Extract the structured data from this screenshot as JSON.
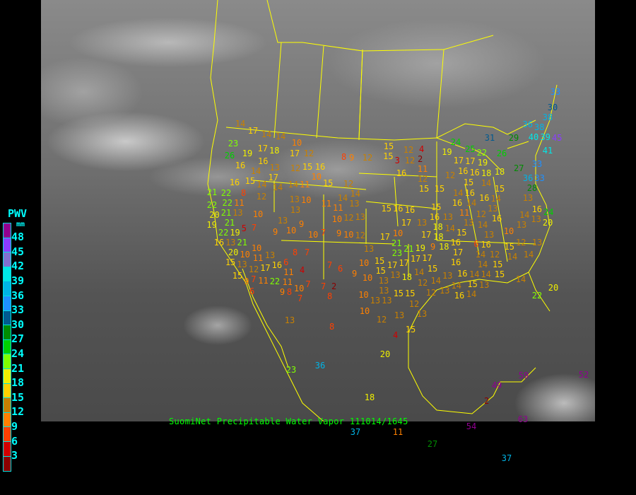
{
  "caption": "SuomiNet Precipitable Water Vapor 111014/1645",
  "legend": {
    "title": "PWV",
    "unit": "mm",
    "ticks": [
      "48",
      "45",
      "42",
      "39",
      "36",
      "33",
      "30",
      "27",
      "24",
      "21",
      "18",
      "15",
      "12",
      "9",
      "6",
      "3"
    ],
    "colors": [
      "#900090",
      "#8c3cff",
      "#8070d0",
      "#00e8e8",
      "#00b4e6",
      "#1e90ff",
      "#005a90",
      "#008c00",
      "#00d000",
      "#80ff00",
      "#f0f000",
      "#ffd200",
      "#c88000",
      "#ff8000",
      "#ff4000",
      "#d00000",
      "#8b0000"
    ]
  },
  "border_color": "#ffff00",
  "stations": [
    14,
    17,
    14,
    14,
    10,
    23,
    26,
    19,
    17,
    18,
    17,
    12,
    8,
    9,
    12,
    16,
    16,
    14,
    13,
    12,
    15,
    16,
    15,
    17,
    10,
    16,
    14,
    14,
    14,
    11,
    15,
    12,
    14,
    21,
    22,
    8,
    12,
    22,
    22,
    13,
    10,
    11,
    11,
    14,
    13,
    13,
    11,
    10,
    20,
    21,
    13,
    19,
    21,
    5,
    7,
    13,
    9,
    10,
    12,
    13,
    22,
    19,
    10,
    9,
    10,
    7,
    9,
    10,
    12,
    16,
    13,
    21,
    20,
    10,
    15,
    10,
    11,
    13,
    16,
    6,
    8,
    7,
    13,
    13,
    12,
    17,
    4,
    7,
    6,
    9,
    10,
    15,
    10,
    11,
    15,
    7,
    9,
    11,
    22,
    11,
    7,
    7,
    2,
    9,
    8,
    10,
    6,
    7,
    8,
    10,
    13,
    13,
    15,
    12,
    4,
    15,
    3,
    12,
    2,
    11,
    16,
    12,
    24,
    25,
    19,
    31,
    29,
    26,
    17,
    22,
    17,
    19,
    18,
    12,
    16,
    16,
    18,
    15,
    14,
    27,
    33,
    36,
    33,
    28,
    15,
    15,
    15,
    13,
    14,
    16,
    16,
    16,
    14,
    14,
    15,
    16,
    16,
    15,
    11,
    12,
    13,
    16,
    16,
    24,
    14,
    13,
    20,
    13,
    10,
    17,
    13,
    16,
    13,
    14,
    15,
    13,
    14,
    17,
    18,
    18,
    17,
    10,
    9,
    18,
    16,
    13,
    12,
    13,
    6,
    16,
    15,
    14,
    14,
    21,
    23,
    21,
    19,
    17,
    17,
    16,
    14,
    12,
    14,
    15,
    17,
    17,
    17,
    15,
    15,
    14,
    14,
    15,
    18,
    14,
    13,
    16,
    13,
    14,
    14,
    15,
    13,
    14,
    20,
    12,
    13,
    15,
    15,
    12,
    13,
    16,
    14,
    22,
    13,
    36,
    38,
    38,
    45,
    40,
    39,
    41,
    33,
    30,
    13,
    8,
    4,
    20,
    23,
    36,
    18,
    37,
    27,
    37,
    49,
    59,
    52,
    2,
    54,
    63,
    11,
    13,
    12,
    13,
    15,
    10,
    12
  ]
}
